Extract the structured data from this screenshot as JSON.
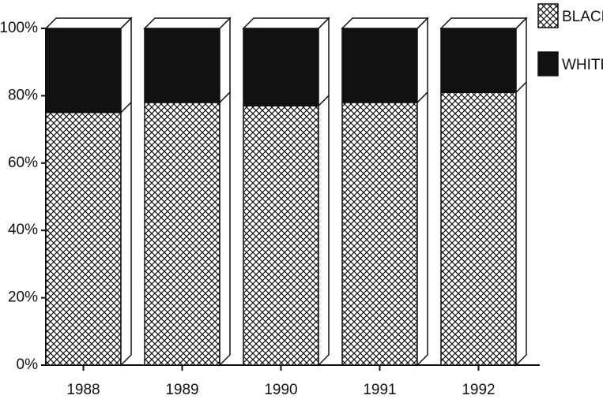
{
  "chart_data": {
    "type": "stacked_bar_3d",
    "categories": [
      "1988",
      "1989",
      "1990",
      "1991",
      "1992"
    ],
    "series": [
      {
        "name": "BLACK",
        "color": "crosshatch",
        "values": [
          75,
          78,
          77,
          78,
          81
        ]
      },
      {
        "name": "WHITE",
        "color": "#111111",
        "values": [
          25,
          22,
          23,
          22,
          19
        ]
      }
    ],
    "ylim": [
      0,
      100
    ],
    "yticks": [
      {
        "value": 0,
        "label": "0%"
      },
      {
        "value": 20,
        "label": "20%"
      },
      {
        "value": 40,
        "label": "40%"
      },
      {
        "value": 60,
        "label": "60%"
      },
      {
        "value": 80,
        "label": "80%"
      },
      {
        "value": 100,
        "label": "100%"
      }
    ],
    "legend": "right"
  }
}
